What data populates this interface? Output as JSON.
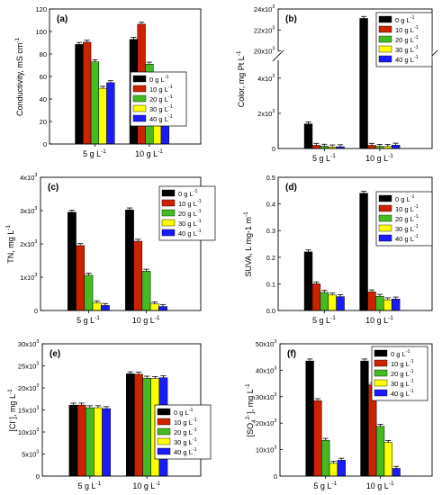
{
  "series_colors": [
    "#000000",
    "#cc2200",
    "#44bb22",
    "#ffff00",
    "#1a1aff"
  ],
  "chart_data": [
    {
      "panel": "(a)",
      "type": "bar",
      "ylabel": "Conductivity, mS cm-1",
      "ylim": [
        0,
        120
      ],
      "yticks": [
        0,
        20,
        40,
        60,
        80,
        100,
        120
      ],
      "categories": [
        "5 g L-1",
        "10 g L-1"
      ],
      "legend_placement": "bottom-right",
      "series": [
        {
          "name": "0 g L-1",
          "values": [
            88.5,
            93
          ]
        },
        {
          "name": "10 g L-1",
          "values": [
            90.5,
            106.5
          ]
        },
        {
          "name": "20 g L-1",
          "values": [
            73,
            71
          ]
        },
        {
          "name": "30 g L-1",
          "values": [
            49.5,
            51.5
          ]
        },
        {
          "name": "40 g L-1",
          "values": [
            54.5,
            55.5
          ]
        }
      ]
    },
    {
      "panel": "(b)",
      "type": "bar",
      "ylabel": "Color, mg Pt L-1",
      "axis_break": true,
      "lower_ylim": [
        0,
        5000
      ],
      "lower_yticks": [
        0,
        2000,
        4000
      ],
      "upper_ylim": [
        20000,
        24000
      ],
      "upper_yticks": [
        20000,
        22000,
        24000
      ],
      "yticklabels": [
        "0",
        "2x103",
        "4x103",
        "20x103",
        "22x103",
        "24x103"
      ],
      "categories": [
        "5 g L-1",
        "10 g L-1"
      ],
      "legend_placement": "top-right",
      "series": [
        {
          "name": "0 g L-1",
          "values": [
            1400,
            23100
          ]
        },
        {
          "name": "10 g L-1",
          "values": [
            180,
            180
          ]
        },
        {
          "name": "20 g L-1",
          "values": [
            130,
            120
          ]
        },
        {
          "name": "30 g L-1",
          "values": [
            90,
            110
          ]
        },
        {
          "name": "40 g L-1",
          "values": [
            100,
            190
          ]
        }
      ]
    },
    {
      "panel": "(c)",
      "type": "bar",
      "ylabel": "TN, mg L-1",
      "ylim": [
        0,
        4000
      ],
      "yticks": [
        0,
        1000,
        2000,
        3000,
        4000
      ],
      "yticklabels": [
        "0",
        "1x103",
        "2x103",
        "3x103",
        "4x103"
      ],
      "categories": [
        "5 g L-1",
        "10 g L-1"
      ],
      "legend_placement": "top-right",
      "series": [
        {
          "name": "0 g L-1",
          "values": [
            2950,
            3020
          ]
        },
        {
          "name": "10 g L-1",
          "values": [
            1950,
            2080
          ]
        },
        {
          "name": "20 g L-1",
          "values": [
            1060,
            1180
          ]
        },
        {
          "name": "30 g L-1",
          "values": [
            230,
            200
          ]
        },
        {
          "name": "40 g L-1",
          "values": [
            150,
            120
          ]
        }
      ]
    },
    {
      "panel": "(d)",
      "type": "bar",
      "ylabel": "SUVA, L mg-1 m-1",
      "ylim": [
        0,
        0.5
      ],
      "yticks": [
        0,
        0.1,
        0.2,
        0.3,
        0.4,
        0.5
      ],
      "yticklabels": [
        "0.0",
        "0.1",
        "0.2",
        "0.3",
        "0.4",
        "0.5"
      ],
      "categories": [
        "5 g L-1",
        "10 g L-1"
      ],
      "legend_placement": "top-right",
      "series": [
        {
          "name": "0 g L-1",
          "values": [
            0.22,
            0.44
          ]
        },
        {
          "name": "10 g L-1",
          "values": [
            0.1,
            0.07
          ]
        },
        {
          "name": "20 g L-1",
          "values": [
            0.068,
            0.053
          ]
        },
        {
          "name": "30 g L-1",
          "values": [
            0.058,
            0.04
          ]
        },
        {
          "name": "40 g L-1",
          "values": [
            0.052,
            0.043
          ]
        }
      ]
    },
    {
      "panel": "(e)",
      "type": "bar",
      "ylabel": "[Cl-], mg L-1",
      "ylim": [
        0,
        30000
      ],
      "yticks": [
        0,
        5000,
        10000,
        15000,
        20000,
        25000,
        30000
      ],
      "yticklabels": [
        "0",
        "5x103",
        "10x103",
        "15x103",
        "20x103",
        "25x103",
        "30x103"
      ],
      "categories": [
        "5 g L-1",
        "10 g L-1"
      ],
      "legend_placement": "bottom-right",
      "series": [
        {
          "name": "0 g L-1",
          "values": [
            16100,
            23200
          ]
        },
        {
          "name": "10 g L-1",
          "values": [
            16100,
            23100
          ]
        },
        {
          "name": "20 g L-1",
          "values": [
            15500,
            22200
          ]
        },
        {
          "name": "30 g L-1",
          "values": [
            15500,
            22100
          ]
        },
        {
          "name": "40 g L-1",
          "values": [
            15300,
            22300
          ]
        }
      ]
    },
    {
      "panel": "(f)",
      "type": "bar",
      "ylabel": "[SO42-], mg L-1",
      "ylim": [
        0,
        50000
      ],
      "yticks": [
        0,
        10000,
        20000,
        30000,
        40000,
        50000
      ],
      "yticklabels": [
        "0",
        "10x103",
        "20x103",
        "30x103",
        "40x103",
        "50x103"
      ],
      "categories": [
        "5 g L-1",
        "10 g L-1"
      ],
      "legend_placement": "top-right",
      "series": [
        {
          "name": "0 g L-1",
          "values": [
            43500,
            43500
          ]
        },
        {
          "name": "10 g L-1",
          "values": [
            28500,
            34500
          ]
        },
        {
          "name": "20 g L-1",
          "values": [
            13500,
            18800
          ]
        },
        {
          "name": "30 g L-1",
          "values": [
            4800,
            12700
          ]
        },
        {
          "name": "40 g L-1",
          "values": [
            6000,
            2900
          ]
        }
      ]
    }
  ]
}
